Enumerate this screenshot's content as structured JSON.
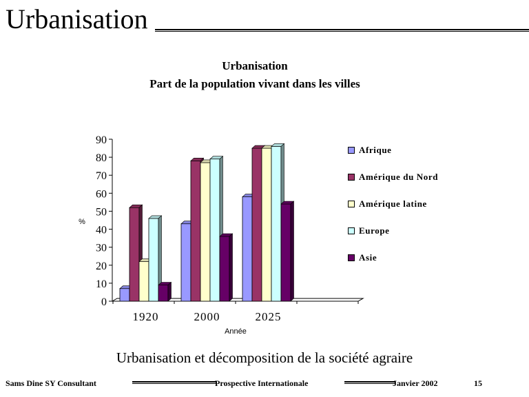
{
  "slide": {
    "title": "Urbanisation",
    "caption": "Urbanisation et décomposition de la société agraire"
  },
  "footer": {
    "author": "Sams Dine SY Consultant",
    "center": "Prospective Internationale",
    "date": "Janvier 2002",
    "page": "15"
  },
  "chart_data": {
    "type": "bar",
    "title": "Urbanisation",
    "subtitle": "Part de la population vivant dans les villes",
    "xlabel": "Année",
    "ylabel": "%",
    "categories": [
      "1920",
      "2000",
      "2025"
    ],
    "ylim": [
      0,
      90
    ],
    "yticks": [
      0,
      10,
      20,
      30,
      40,
      50,
      60,
      70,
      80,
      90
    ],
    "grid": false,
    "legend_position": "right",
    "series": [
      {
        "name": "Afrique",
        "color": "#9999ff",
        "values": [
          7,
          43,
          58
        ]
      },
      {
        "name": "Amérique du Nord",
        "color": "#993366",
        "values": [
          52,
          78,
          85
        ]
      },
      {
        "name": "Amérique latine",
        "color": "#ffffcc",
        "values": [
          22,
          77,
          85
        ]
      },
      {
        "name": "Europe",
        "color": "#ccffff",
        "values": [
          46,
          79,
          86
        ]
      },
      {
        "name": "Asie",
        "color": "#660066",
        "values": [
          9,
          36,
          54
        ]
      }
    ]
  }
}
